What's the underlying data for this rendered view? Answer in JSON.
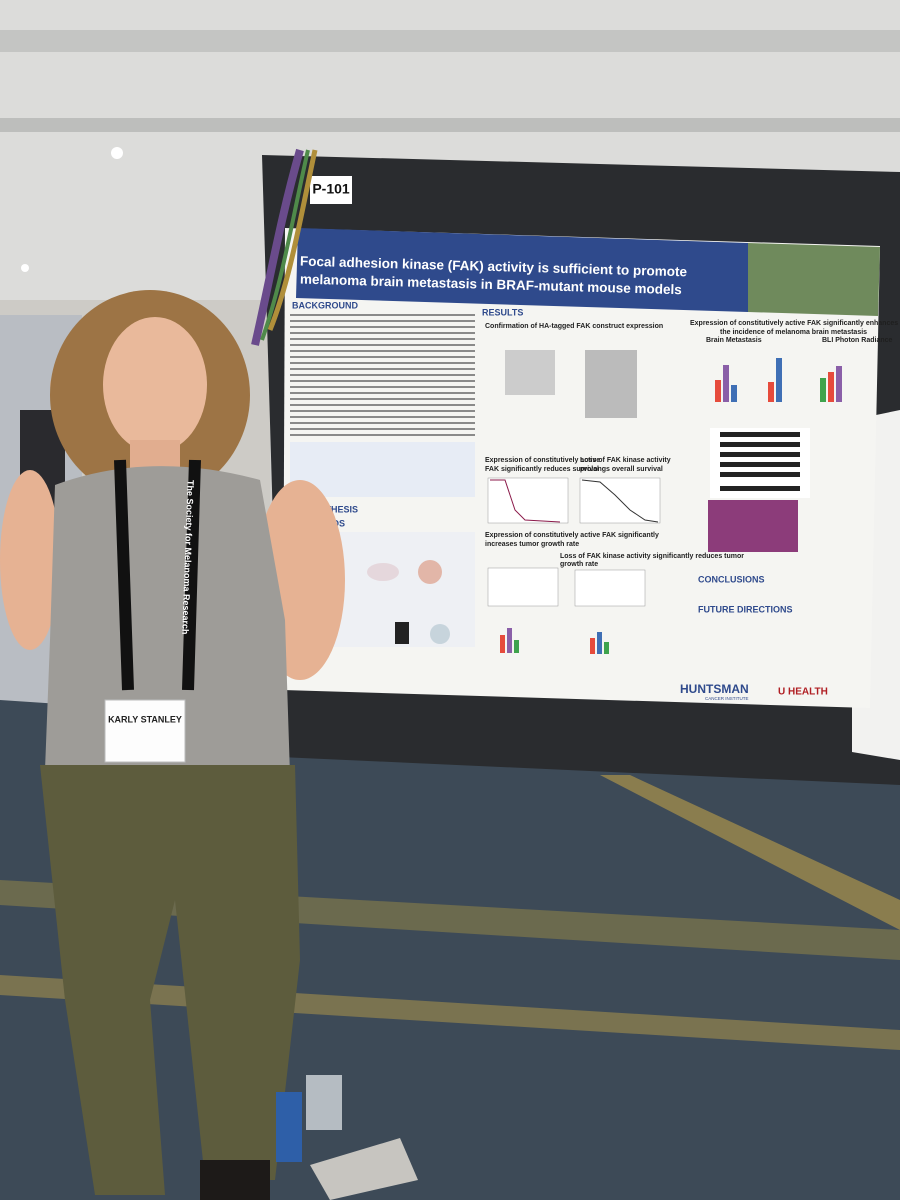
{
  "poster": {
    "number": "P-101",
    "title": [
      "Focal adhesion kinase (FAK) activity is sufficient to promote",
      "melanoma brain metastasis in BRAF-mutant mouse models"
    ],
    "sections": [
      "BACKGROUND",
      "HYPOTHESIS",
      "METHODS",
      "RESULTS",
      "CONCLUSIONS",
      "FUTURE DIRECTIONS"
    ],
    "figures": [
      "Confirmation of HA-tagged FAK construct expression",
      "Expression of constitutively active FAK significantly enhances",
      "the incidence of melanoma brain metastasis",
      "Brain Metastasis",
      "BLI Photon Radiance",
      "Expression of constitutively active",
      "FAK significantly reduces survival",
      "Loss of FAK kinase activity",
      "prolongs overall survival",
      "Expression of constitutively active FAK significantly",
      "increases tumor growth rate",
      "Loss of FAK kinase activity significantly reduces tumor",
      "growth rate"
    ],
    "logos": [
      "HUNTSMAN",
      "CANCER INSTITUTE",
      "U HEALTH"
    ]
  },
  "badge": {
    "name": "KARLY STANLEY"
  },
  "lanyard": "The Society for Melanoma Research"
}
